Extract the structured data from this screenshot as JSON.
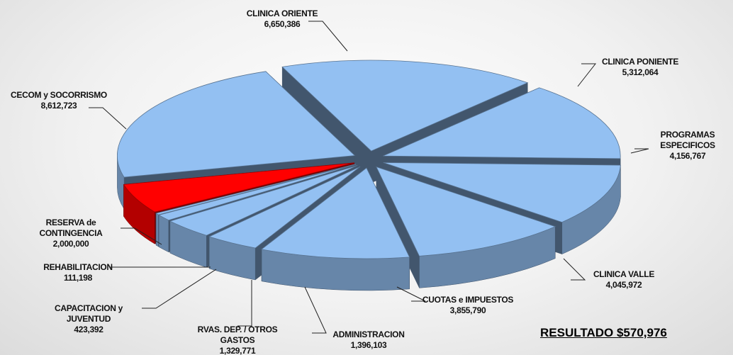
{
  "chart_data": {
    "type": "pie",
    "categories": [
      "CLINICA ORIENTE",
      "CLINICA PONIENTE",
      "PROGRAMAS ESPECIFICOS",
      "CLINICA VALLE",
      "CUOTAS e IMPUESTOS",
      "ADMINISTRACION",
      "RVAS. DEP. / OTROS GASTOS",
      "CAPACITACION y JUVENTUD",
      "REHABILITACION",
      "RESERVA de CONTINGENCIA",
      "CECOM y SOCORRISMO"
    ],
    "values": [
      6650386,
      5312064,
      4156767,
      4045972,
      3855790,
      1396103,
      1329771,
      423392,
      111198,
      2000000,
      8612723
    ],
    "value_labels": [
      "6,650,386",
      "5,312,064",
      "4,156,767",
      "4,045,972",
      "3,855,790",
      "1,396,103",
      "1,329,771",
      "423,392",
      "111,198",
      "2,000,000",
      "8,612,723"
    ],
    "colors": [
      "#93c0f2",
      "#93c0f2",
      "#93c0f2",
      "#93c0f2",
      "#93c0f2",
      "#93c0f2",
      "#93c0f2",
      "#93c0f2",
      "#93c0f2",
      "#ff0000",
      "#93c0f2"
    ],
    "annotation": "RESULTADO $570,976"
  }
}
